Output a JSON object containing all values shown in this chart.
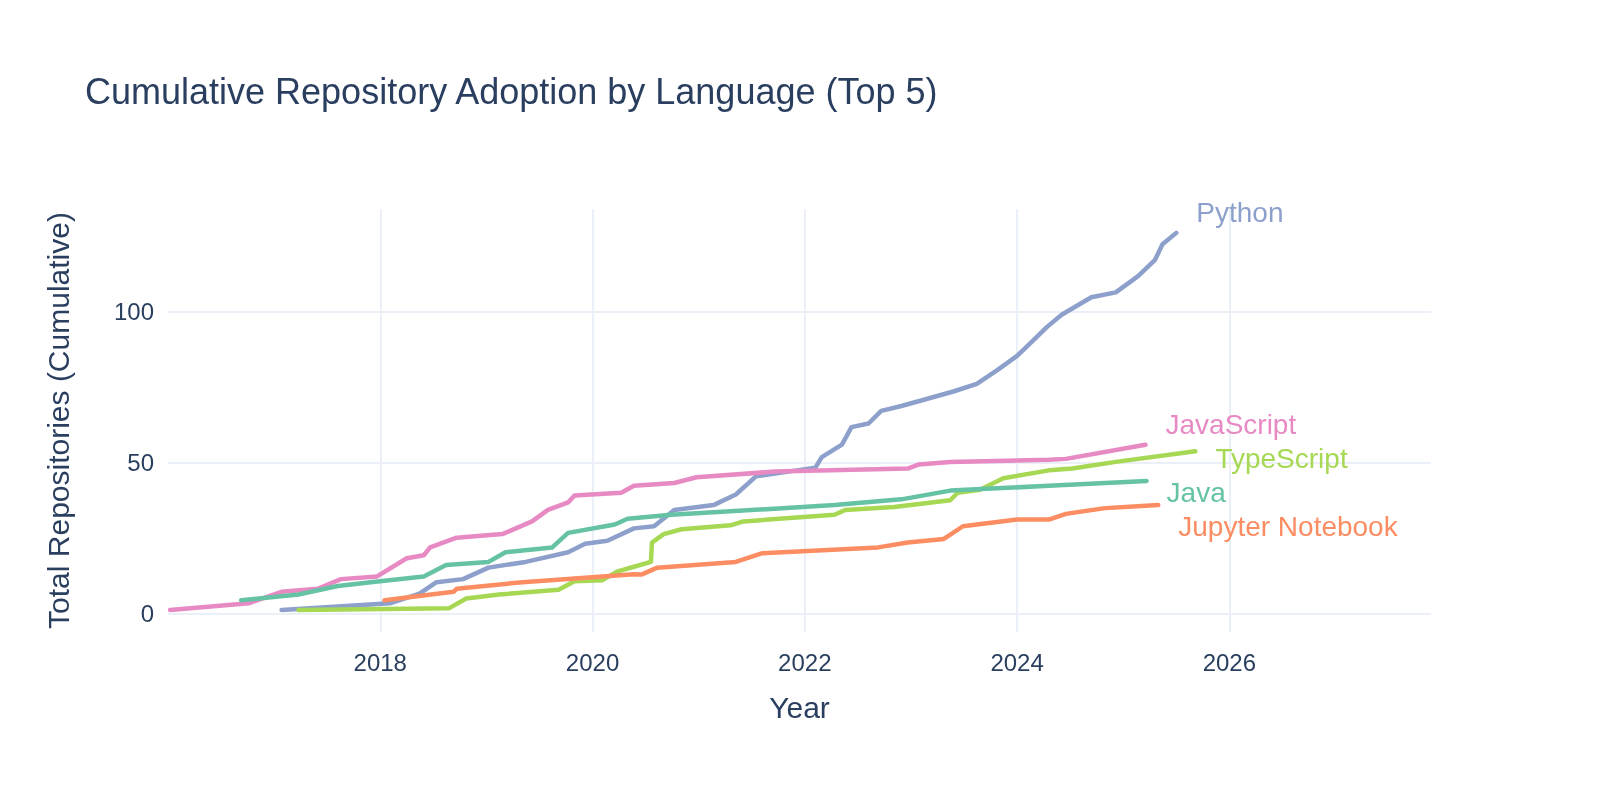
{
  "chart_data": {
    "type": "line",
    "title": "Cumulative Repository Adoption by Language (Top 5)",
    "xlabel": "Year",
    "ylabel": "Total Repositories (Cumulative)",
    "xlim": [
      2016.0,
      2027.9
    ],
    "xticks": [
      2018,
      2020,
      2022,
      2024,
      2026
    ],
    "ylim": [
      -6,
      134
    ],
    "yticks": [
      0,
      50,
      100
    ],
    "grid": true,
    "legend": false,
    "line_style": "solid",
    "marker": "none",
    "series": [
      {
        "name": "Python",
        "color": "#8da0cb",
        "x": [
          2017.07,
          2018.09,
          2018.37,
          2018.53,
          2018.78,
          2019.02,
          2019.37,
          2019.77,
          2019.93,
          2020.14,
          2020.39,
          2020.58,
          2020.77,
          2021.14,
          2021.35,
          2021.54,
          2022.1,
          2022.16,
          2022.35,
          2022.44,
          2022.6,
          2022.72,
          2022.91,
          2023.4,
          2023.62,
          2023.81,
          2024.0,
          2024.15,
          2024.28,
          2024.42,
          2024.7,
          2024.93,
          2025.14,
          2025.3,
          2025.37,
          2025.5
        ],
        "values": [
          1.3,
          3.5,
          6.7,
          10.5,
          11.5,
          15.3,
          17.2,
          20.4,
          23.2,
          24.2,
          28.3,
          29,
          34.4,
          36,
          39.5,
          45.5,
          48.4,
          51.9,
          56,
          61.8,
          63,
          67.2,
          68.8,
          73.6,
          76.1,
          80.6,
          85.4,
          90.4,
          94.9,
          99,
          104.8,
          106.4,
          111.8,
          117.2,
          122.3,
          126.1
        ]
      },
      {
        "name": "JavaScript",
        "color": "#e78ac3",
        "x": [
          2016.02,
          2016.76,
          2017.07,
          2017.41,
          2017.63,
          2017.97,
          2018.25,
          2018.41,
          2018.47,
          2018.72,
          2019.15,
          2019.43,
          2019.58,
          2019.77,
          2019.83,
          2020.27,
          2020.39,
          2020.77,
          2020.98,
          2021.72,
          2022.97,
          2023.07,
          2023.37,
          2024.3,
          2024.46,
          2025.21
        ],
        "values": [
          1.3,
          3.5,
          7.3,
          8.3,
          11.5,
          12.4,
          18.4,
          19.4,
          22,
          25.2,
          26.4,
          30.6,
          34.4,
          36.9,
          39.2,
          40.1,
          42.4,
          43.3,
          45.2,
          47.1,
          48.1,
          49.4,
          50.3,
          51,
          51.3,
          56
        ]
      },
      {
        "name": "TypeScript",
        "color": "#a6d854",
        "x": [
          2017.23,
          2018.65,
          2018.81,
          2019.12,
          2019.68,
          2019.83,
          2020.09,
          2020.23,
          2020.39,
          2020.55,
          2020.56,
          2020.67,
          2020.84,
          2021.3,
          2021.42,
          2022.28,
          2022.38,
          2022.84,
          2023.37,
          2023.44,
          2023.65,
          2023.87,
          2024.3,
          2024.52,
          2024.93,
          2025.68
        ],
        "values": [
          1.3,
          1.9,
          5.1,
          6.4,
          8,
          10.8,
          11.1,
          14,
          15.6,
          17.2,
          23.6,
          26.4,
          28,
          29.3,
          30.6,
          32.8,
          34.4,
          35.4,
          37.6,
          40.1,
          41.1,
          44.9,
          47.5,
          48.1,
          50.3,
          53.8
        ]
      },
      {
        "name": "Java",
        "color": "#66c2a5",
        "x": [
          2016.69,
          2017.23,
          2017.6,
          2017.91,
          2018.41,
          2018.62,
          2019.02,
          2019.18,
          2019.62,
          2019.77,
          2020.21,
          2020.33,
          2020.74,
          2022.28,
          2022.91,
          2023.37,
          2024.3,
          2025.22
        ],
        "values": [
          4.5,
          6.4,
          9.2,
          10.5,
          12.4,
          16.2,
          17.2,
          20.4,
          22,
          26.8,
          29.6,
          31.5,
          32.8,
          36,
          37.9,
          40.8,
          42.4,
          44
        ]
      },
      {
        "name": "Jupyter Notebook",
        "color": "#fc8d62",
        "x": [
          2018.04,
          2018.69,
          2018.72,
          2019.34,
          2020.39,
          2020.46,
          2020.61,
          2021.35,
          2021.6,
          2022.69,
          2022.97,
          2023.31,
          2023.49,
          2024.0,
          2024.3,
          2024.46,
          2024.83,
          2025.33
        ],
        "values": [
          4.5,
          7.3,
          8.3,
          10.5,
          13.1,
          13,
          15.3,
          17.2,
          20.1,
          22,
          23.6,
          24.8,
          29,
          31.2,
          31.2,
          33.1,
          35,
          36
        ]
      }
    ]
  }
}
